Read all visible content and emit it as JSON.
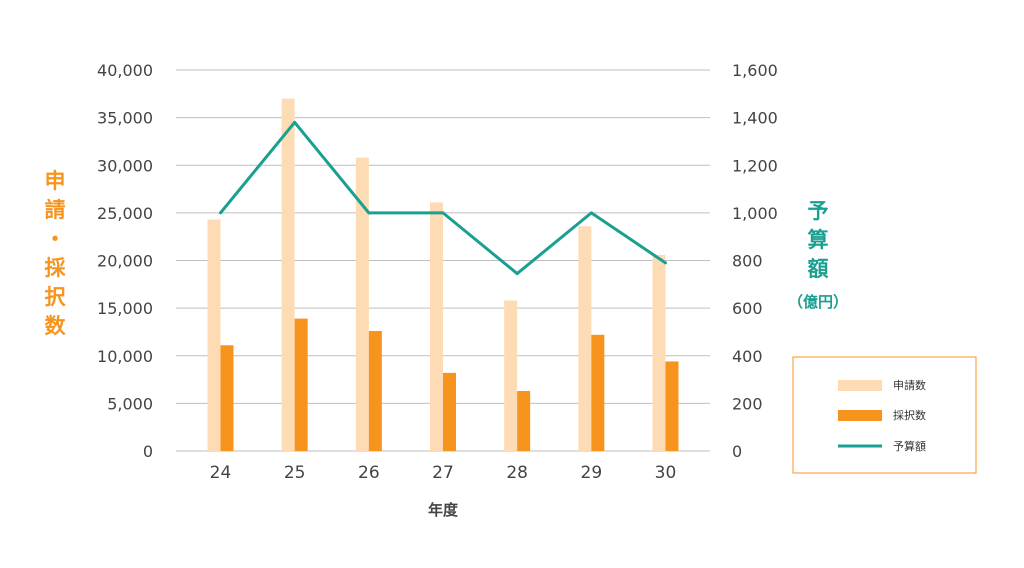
{
  "chart_data": {
    "type": "bar",
    "categories": [
      "24",
      "25",
      "26",
      "27",
      "28",
      "29",
      "30"
    ],
    "series": [
      {
        "name": "申請数",
        "kind": "bar",
        "axis": "left",
        "color": "#fddcb5",
        "values": [
          24300,
          37000,
          30800,
          26100,
          15800,
          23600,
          20600
        ]
      },
      {
        "name": "採択数",
        "kind": "bar",
        "axis": "left",
        "color": "#f7941d",
        "values": [
          11100,
          13900,
          12600,
          8200,
          6300,
          12200,
          9400
        ]
      },
      {
        "name": "予算額",
        "kind": "line",
        "axis": "right",
        "color": "#1aa090",
        "values": [
          1000,
          1380,
          1000,
          1000,
          745,
          1000,
          790
        ]
      }
    ],
    "xlabel": "年度",
    "ylabel_left_chars": [
      "申",
      "請",
      "・",
      "採",
      "択",
      "数"
    ],
    "ylabel_right_chars": [
      "予",
      "算",
      "額"
    ],
    "ylabel_right_unit": "（億円）",
    "ylim_left": [
      0,
      40000
    ],
    "ylim_right": [
      0,
      1600
    ],
    "yticks_left": [
      "0",
      "5,000",
      "10,000",
      "15,000",
      "20,000",
      "25,000",
      "30,000",
      "35,000",
      "40,000"
    ],
    "yticks_right": [
      "0",
      "200",
      "400",
      "600",
      "800",
      "1,000",
      "1,200",
      "1,400",
      "1,600"
    ],
    "grid": true,
    "legend_position": "right",
    "colors": {
      "left_axis_title": "#f7941d",
      "right_axis_title": "#1aa090",
      "legend_border": "#f7941d",
      "grid": "#bfbfbf"
    }
  }
}
